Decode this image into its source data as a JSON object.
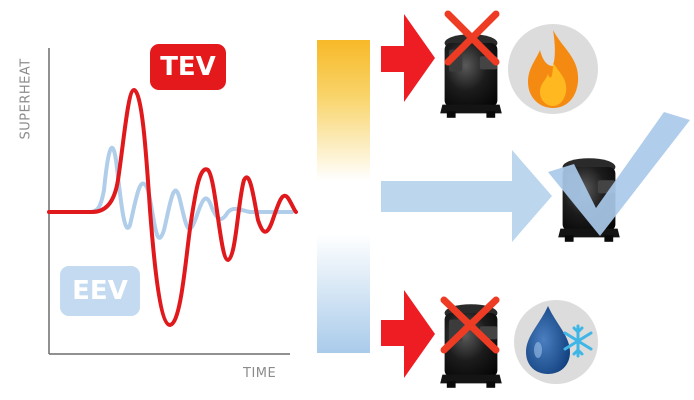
{
  "chart_data": {
    "type": "line",
    "ylabel": "SUPERHEAT",
    "xlabel": "TIME",
    "series": [
      {
        "name": "TEV",
        "color": "#e0191c"
      },
      {
        "name": "EEV",
        "color": "#a9c9ea"
      }
    ]
  },
  "labels": {
    "tev": "TEV",
    "eev": "EEV",
    "y_axis": "SUPERHEAT",
    "x_axis": "TIME"
  },
  "icons": {
    "gradient_bar": "temperature-gradient-bar",
    "top_result": "flame-icon",
    "middle_result": "checkmark-icon",
    "bottom_result": "water-drop-snowflake-icon"
  },
  "colors": {
    "red_arrow": "#ee1c23",
    "blue_arrow": "#b9d5ee",
    "cross": "#ee3b24",
    "check": "#a9c9ea",
    "gradient_top": "#f7bb2d",
    "gradient_bottom": "#b9d5ee"
  }
}
